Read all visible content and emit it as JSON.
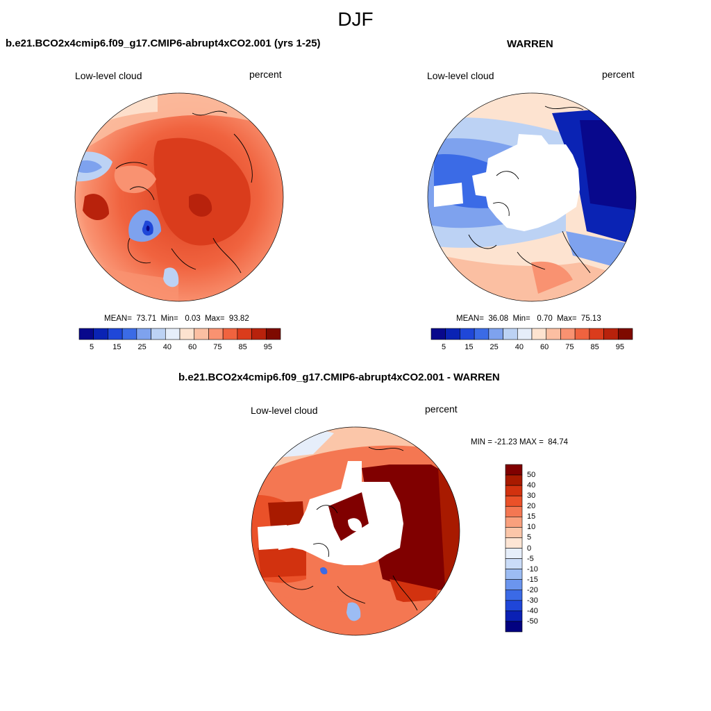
{
  "figure": {
    "season": "DJF"
  },
  "colors": {
    "seq": [
      "#08088c",
      "#0a23b4",
      "#1f47d8",
      "#3b6be6",
      "#7ea2ee",
      "#bcd2f4",
      "#e6eefa",
      "#fde3d0",
      "#fbbfa2",
      "#f99271",
      "#f0633f",
      "#da3c1c",
      "#b8220c",
      "#7e0a00"
    ],
    "div": [
      "#020280",
      "#0a20b4",
      "#1f46d8",
      "#3b6ae6",
      "#6b95ee",
      "#9cbcf3",
      "#cadcf8",
      "#e6eefa",
      "#fde5d4",
      "#fbc6a9",
      "#f9a07d",
      "#f47752",
      "#ea5129",
      "#d2320f",
      "#a81a00",
      "#800000"
    ]
  },
  "panels": {
    "left": {
      "title": "b.e21.BCO2x4cmip6.f09_g17.CMIP6-abrupt4xCO2.001 (yrs 1-25)",
      "field_label": "Low-level cloud",
      "units": "percent",
      "stats": "MEAN=  73.71  Min=   0.03  Max=  93.82",
      "colorbar_ticks": [
        "5",
        "15",
        "25",
        "40",
        "60",
        "75",
        "85",
        "95"
      ]
    },
    "right": {
      "title": "WARREN",
      "field_label": "Low-level cloud",
      "units": "percent",
      "stats": "MEAN=  36.08  Min=   0.70  Max=  75.13",
      "colorbar_ticks": [
        "5",
        "15",
        "25",
        "40",
        "60",
        "75",
        "85",
        "95"
      ]
    },
    "diff": {
      "title": "b.e21.BCO2x4cmip6.f09_g17.CMIP6-abrupt4xCO2.001 - WARREN",
      "field_label": "Low-level cloud",
      "units": "percent",
      "minmax": "MIN = -21.23 MAX =  84.74",
      "colorbar_ticks": [
        "50",
        "40",
        "30",
        "20",
        "15",
        "10",
        "5",
        "0",
        "-5",
        "-10",
        "-15",
        "-20",
        "-30",
        "-40",
        "-50"
      ]
    }
  }
}
